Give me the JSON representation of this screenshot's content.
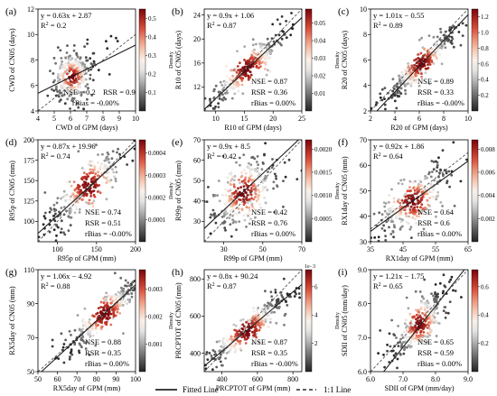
{
  "figure": {
    "legend": {
      "fitted_label": "Fitted Line",
      "one_to_one_label": "1:1 Line"
    }
  },
  "chart_data": [
    {
      "id": "a",
      "panel_label": "(a)",
      "type": "scatter",
      "xlabel": "CWD of GPM (days)",
      "ylabel": "CWD of CN05 (days)",
      "xlim": [
        4,
        10
      ],
      "ylim": [
        4,
        12
      ],
      "xticks": [
        "4",
        "5",
        "6",
        "7",
        "8",
        "9",
        "10"
      ],
      "yticks": [
        "4",
        "6",
        "8",
        "10",
        "12"
      ],
      "fit": {
        "slope": 0.63,
        "intercept": 2.87
      },
      "equation": "y = 0.63x + 2.87",
      "r2": "0.2",
      "metrics": {
        "nse": "NSE = 0.2",
        "rsr": "RSR = 0.9",
        "rbias": "rBias = -0.00%"
      },
      "metrics_layout": "row",
      "colorbar": {
        "ticks": [
          "0.1",
          "0.2",
          "0.3",
          "0.4",
          "0.5"
        ],
        "label": "Density",
        "range": [
          0,
          0.55
        ]
      },
      "cloud": {
        "center": [
          6.1,
          6.7
        ],
        "spread": [
          0.55,
          0.9
        ],
        "rho": 0.35,
        "n": 300
      }
    },
    {
      "id": "b",
      "panel_label": "(b)",
      "type": "scatter",
      "xlabel": "R10 of GPM (days)",
      "ylabel": "R10 of CN05 (days)",
      "xlim": [
        8,
        25
      ],
      "ylim": [
        8,
        25
      ],
      "xticks": [
        "10",
        "15",
        "20",
        "25"
      ],
      "yticks": [
        "12",
        "16",
        "20",
        "24"
      ],
      "fit": {
        "slope": 0.9,
        "intercept": 1.06
      },
      "equation": "y = 0.9x + 1.06",
      "r2": "0.87",
      "metrics": {
        "nse": "NSE = 0.87",
        "rsr": "RSR = 0.36",
        "rbias": "rBias = 0.00%"
      },
      "metrics_layout": "column",
      "colorbar": {
        "ticks": [
          "0.01",
          "0.02",
          "0.03",
          "0.04",
          "0.05"
        ],
        "label": "Density",
        "range": [
          0,
          0.058
        ]
      },
      "cloud": {
        "center": [
          15.5,
          15.0
        ],
        "spread": [
          3.2,
          3.0
        ],
        "rho": 0.93,
        "n": 320
      }
    },
    {
      "id": "c",
      "panel_label": "(c)",
      "type": "scatter",
      "xlabel": "R20 of GPM (days)",
      "ylabel": "R20 of CN05 (days)",
      "xlim": [
        2,
        10
      ],
      "ylim": [
        2,
        10
      ],
      "xticks": [
        "2",
        "4",
        "6",
        "8",
        "10"
      ],
      "yticks": [
        "2",
        "4",
        "6",
        "8",
        "10"
      ],
      "fit": {
        "slope": 1.01,
        "intercept": -0.55
      },
      "equation": "y = 1.01x − 0.55",
      "r2": "0.89",
      "metrics": {
        "nse": "NSE = 0.89",
        "rsr": "RSR = 0.33",
        "rbias": "rBias = -0.00%"
      },
      "metrics_layout": "column",
      "colorbar": {
        "ticks": [
          "0.2",
          "0.4",
          "0.6",
          "0.8",
          "1.0",
          "1.2"
        ],
        "label": "Density",
        "range": [
          0,
          1.3
        ]
      },
      "cloud": {
        "center": [
          6.2,
          5.7
        ],
        "spread": [
          1.3,
          1.3
        ],
        "rho": 0.94,
        "n": 320
      }
    },
    {
      "id": "d",
      "panel_label": "(d)",
      "type": "scatter",
      "xlabel": "R95p of GPM (mm)",
      "ylabel": "R95p of CN05 (mm)",
      "xlim": [
        75,
        200
      ],
      "ylim": [
        75,
        200
      ],
      "xticks": [
        "100",
        "150",
        "200"
      ],
      "yticks": [
        "100",
        "125",
        "150",
        "175",
        "200"
      ],
      "fit": {
        "slope": 0.87,
        "intercept": 19.96
      },
      "equation": "y = 0.87x + 19.96",
      "r2": "0.74",
      "metrics": {
        "nse": "NSE = 0.74",
        "rsr": "RSR = 0.51",
        "rbias": "rBias = -0.00%"
      },
      "metrics_layout": "column",
      "colorbar": {
        "ticks": [
          "0.0001",
          "0.0002",
          "0.0003",
          "0.0004"
        ],
        "label": "Density",
        "range": [
          0,
          0.00046
        ]
      },
      "cloud": {
        "center": [
          140,
          143
        ],
        "spread": [
          24,
          24
        ],
        "rho": 0.86,
        "n": 320
      }
    },
    {
      "id": "e",
      "panel_label": "(e)",
      "type": "scatter",
      "xlabel": "R99p of GPM (mm)",
      "ylabel": "R99p of CN05 (mm)",
      "xlim": [
        20,
        70
      ],
      "ylim": [
        20,
        70
      ],
      "xticks": [
        "30",
        "50",
        "70"
      ],
      "yticks": [
        "30",
        "40",
        "50",
        "60",
        "70"
      ],
      "fit": {
        "slope": 0.9,
        "intercept": 8.5
      },
      "equation": "y = 0.9x + 8.5",
      "r2": "0.42",
      "metrics": {
        "nse": "NSE = 0.42",
        "rsr": "RSR = 0.76",
        "rbias": "rBias = 0.00%"
      },
      "metrics_layout": "column",
      "colorbar": {
        "ticks": [
          "0.0005",
          "0.0010",
          "0.0015",
          "0.0020"
        ],
        "label": "Density",
        "range": [
          0,
          0.0022
        ]
      },
      "cloud": {
        "center": [
          40,
          44
        ],
        "spread": [
          8,
          9
        ],
        "rho": 0.65,
        "n": 320
      }
    },
    {
      "id": "f",
      "panel_label": "(f)",
      "type": "scatter",
      "xlabel": "RX1day of GPM (mm)",
      "ylabel": "RX1day of CN05 (mm)",
      "xlim": [
        35,
        65
      ],
      "ylim": [
        30,
        70
      ],
      "xticks": [
        "35",
        "45",
        "55",
        "65"
      ],
      "yticks": [
        "30",
        "40",
        "50",
        "60",
        "70"
      ],
      "fit": {
        "slope": 0.92,
        "intercept": 1.86
      },
      "equation": "y = 0.92x + 1.86",
      "r2": "0.64",
      "metrics": {
        "nse": "NSE = 0.64",
        "rsr": "RSR = 0.6",
        "rbias": "rBias = 0.00%"
      },
      "metrics_layout": "column",
      "colorbar": {
        "ticks": [
          "0.002",
          "0.004",
          "0.006",
          "0.008"
        ],
        "label": "Density",
        "range": [
          0,
          0.0088
        ]
      },
      "cloud": {
        "center": [
          48,
          46
        ],
        "spread": [
          5.5,
          6.5
        ],
        "rho": 0.8,
        "n": 320
      }
    },
    {
      "id": "g",
      "panel_label": "(g)",
      "type": "scatter",
      "xlabel": "RX5day of GPM (mm)",
      "ylabel": "RX5day of CN05 (mm)",
      "xlim": [
        50,
        100
      ],
      "ylim": [
        50,
        110
      ],
      "xticks": [
        "50",
        "60",
        "70",
        "80",
        "90",
        "100"
      ],
      "yticks": [
        "50",
        "70",
        "90",
        "110"
      ],
      "fit": {
        "slope": 1.06,
        "intercept": -4.92
      },
      "equation": "y = 1.06x − 4.92",
      "r2": "0.88",
      "metrics": {
        "nse": "NSE = 0.88",
        "rsr": "RSR = 0.35",
        "rbias": "rBias = 0.00%"
      },
      "metrics_layout": "column",
      "colorbar": {
        "ticks": [
          "0.001",
          "0.002",
          "0.003"
        ],
        "label": "Density",
        "range": [
          0,
          0.0037
        ]
      },
      "cloud": {
        "center": [
          84,
          84
        ],
        "spread": [
          9,
          10
        ],
        "rho": 0.92,
        "n": 320
      }
    },
    {
      "id": "h",
      "panel_label": "(h)",
      "type": "scatter",
      "xlabel": "PRCPTOT of GPM (mm)",
      "ylabel": "PRCPTOT of CN05 (mm)",
      "xlim": [
        300,
        850
      ],
      "ylim": [
        300,
        850
      ],
      "xticks": [
        "400",
        "600",
        "800"
      ],
      "yticks": [
        "400",
        "600",
        "800"
      ],
      "fit": {
        "slope": 0.8,
        "intercept": 90.24
      },
      "equation": "y = 0.8x + 90.24",
      "r2": "0.87",
      "metrics": {
        "nse": "NSE = 0.87",
        "rsr": "RSR = 0.35",
        "rbias": "rBias = -0.00%"
      },
      "metrics_layout": "column",
      "colorbar": {
        "ticks": [
          "2",
          "4",
          "6"
        ],
        "label": "Density",
        "range": [
          0,
          7.2
        ],
        "exponent": "1e−3"
      },
      "cloud": {
        "center": [
          540,
          520
        ],
        "spread": [
          110,
          95
        ],
        "rho": 0.93,
        "n": 320
      }
    },
    {
      "id": "i",
      "panel_label": "(i)",
      "type": "scatter",
      "xlabel": "SDII of GPM (mm/day)",
      "ylabel": "SDII of CN05 (mm/day)",
      "xlim": [
        6,
        9
      ],
      "ylim": [
        6,
        9
      ],
      "xticks": [
        "6.0",
        "7.0",
        "8.0",
        "9.0"
      ],
      "yticks": [
        "6.0",
        "7.0",
        "8.0",
        "9.0"
      ],
      "fit": {
        "slope": 1.21,
        "intercept": -1.75
      },
      "equation": "y = 1.21x − 1.75",
      "r2": "0.65",
      "metrics": {
        "nse": "NSE = 0.65",
        "rsr": "RSR = 0.59",
        "rbias": "rBias = 0.00%"
      },
      "metrics_layout": "column",
      "colorbar": {
        "ticks": [
          "0.2",
          "0.4",
          "0.6"
        ],
        "label": "Density",
        "range": [
          0,
          0.72
        ]
      },
      "cloud": {
        "center": [
          7.5,
          7.4
        ],
        "spread": [
          0.38,
          0.45
        ],
        "rho": 0.78,
        "n": 320
      }
    }
  ]
}
